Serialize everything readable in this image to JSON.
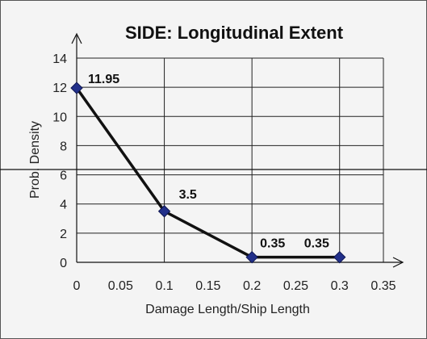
{
  "chart_data": {
    "type": "line",
    "title": "SIDE: Longitudinal Extent",
    "xlabel": "Damage Length/Ship Length",
    "ylabel": "Prob. Density",
    "xlim": [
      0,
      0.35
    ],
    "ylim": [
      0,
      14
    ],
    "x_ticks": [
      "0",
      "0.05",
      "0.1",
      "0.15",
      "0.2",
      "0.25",
      "0.3",
      "0.35"
    ],
    "y_ticks": [
      "0",
      "2",
      "4",
      "6",
      "8",
      "10",
      "12",
      "14"
    ],
    "series": [
      {
        "x": [
          0,
          0.1,
          0.2,
          0.3
        ],
        "values": [
          11.95,
          3.5,
          0.35,
          0.35
        ],
        "data_labels": [
          "11.95",
          "3.5",
          "0.35",
          "0.35"
        ]
      }
    ],
    "line_color": "#111111",
    "marker_color": "#22308a",
    "grid": true,
    "legend": "none"
  }
}
